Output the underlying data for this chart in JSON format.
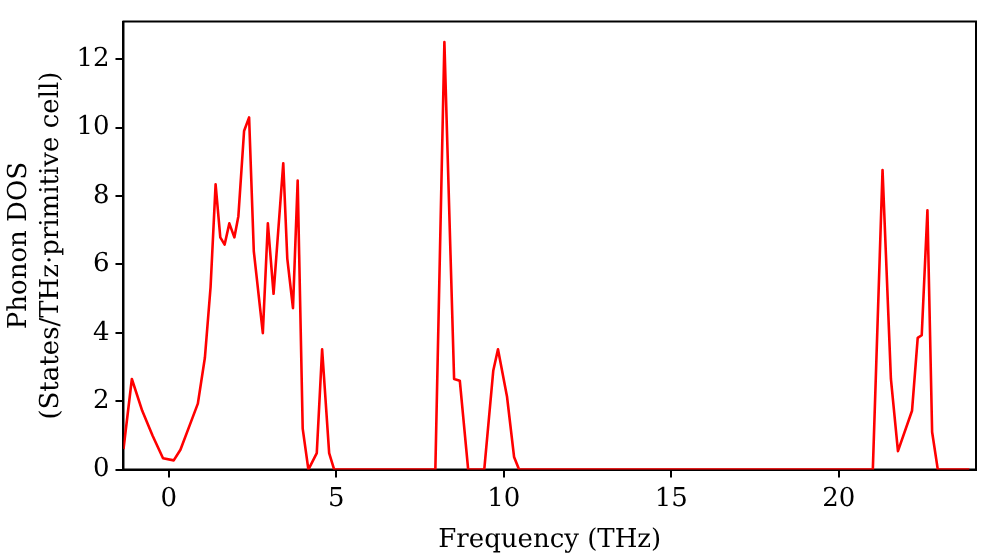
{
  "chart_data": {
    "type": "line",
    "xlabel": "Frequency (THz)",
    "ylabel": "Phonon DOS\n(States/THz·primitive cell)",
    "x": [
      -1.35,
      -1.1,
      -0.79,
      -0.48,
      -0.17,
      0.15,
      0.35,
      0.67,
      0.87,
      1.08,
      1.25,
      1.4,
      1.54,
      1.67,
      1.81,
      1.96,
      2.08,
      2.25,
      2.4,
      2.54,
      2.81,
      2.96,
      3.13,
      3.42,
      3.54,
      3.71,
      3.85,
      4.0,
      4.17,
      4.42,
      4.58,
      4.79,
      4.94,
      7.96,
      8.23,
      8.52,
      8.69,
      8.94,
      9.42,
      9.69,
      9.83,
      10.1,
      10.31,
      10.46,
      21.02,
      21.31,
      21.56,
      21.77,
      22.19,
      22.36,
      22.48,
      22.65,
      22.79,
      22.96,
      23.9
    ],
    "series": [
      {
        "color": "#ff0000",
        "values": [
          0.6,
          2.65,
          1.72,
          0.99,
          0.33,
          0.27,
          0.58,
          1.41,
          1.93,
          3.27,
          5.34,
          8.34,
          6.79,
          6.58,
          7.2,
          6.79,
          7.41,
          9.9,
          10.3,
          6.39,
          3.99,
          7.2,
          5.14,
          8.96,
          6.17,
          4.72,
          8.45,
          1.2,
          0,
          0.48,
          3.52,
          0.48,
          0,
          0,
          12.5,
          2.65,
          2.6,
          0,
          0,
          2.9,
          3.52,
          2.13,
          0.37,
          0,
          0,
          8.76,
          2.65,
          0.54,
          1.72,
          3.85,
          3.93,
          7.58,
          1.1,
          0,
          0
        ]
      }
    ],
    "xlim": [
      -1.35,
      24.1
    ],
    "xticks": [
      0,
      5,
      10,
      15,
      20
    ],
    "ylim": [
      0,
      13.1
    ],
    "yticks": [
      0,
      2,
      4,
      6,
      8,
      10,
      12
    ],
    "grid": false,
    "legend": false,
    "marker": "none",
    "line_style": "solid"
  }
}
